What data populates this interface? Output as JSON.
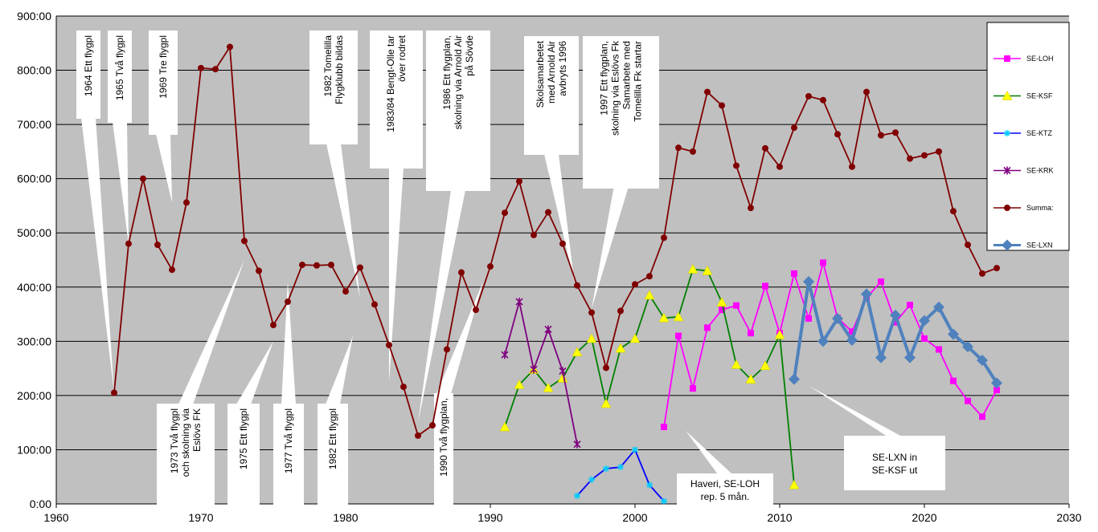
{
  "chart_data": {
    "type": "line",
    "title": "",
    "xlabel": "",
    "ylabel": "",
    "xlim": [
      1960,
      2030
    ],
    "ylim": [
      0,
      900
    ],
    "grid": "horizontal",
    "legend_position": "right",
    "x_ticks": [
      "1960",
      "1970",
      "1980",
      "1990",
      "2000",
      "2010",
      "2020",
      "2030"
    ],
    "y_ticks": [
      "0:00",
      "100:00",
      "200:00",
      "300:00",
      "400:00",
      "500:00",
      "600:00",
      "700:00",
      "800:00",
      "900:00"
    ],
    "series": [
      {
        "name": "SE-LOH",
        "color": "#ff00ff",
        "marker": "square",
        "x": [
          2002,
          2003,
          2004,
          2005,
          2006,
          2007,
          2008,
          2009,
          2010,
          2011,
          2012,
          2013,
          2014,
          2015,
          2016,
          2017,
          2018,
          2019,
          2020,
          2021,
          2022,
          2023,
          2024,
          2025
        ],
        "y": [
          142,
          310,
          213,
          325,
          358,
          366,
          315,
          402,
          315,
          425,
          342,
          445,
          343,
          318,
          380,
          410,
          335,
          367,
          305,
          285,
          227,
          190,
          161,
          210
        ]
      },
      {
        "name": "SE-KSF",
        "color": "#008000",
        "marker": "triangle",
        "x": [
          1991,
          1992,
          1993,
          1994,
          1995,
          1996,
          1997,
          1998,
          1999,
          2000,
          2001,
          2002,
          2003,
          2004,
          2005,
          2006,
          2007,
          2008,
          2009,
          2010,
          2011
        ],
        "y": [
          142,
          220,
          248,
          214,
          232,
          280,
          305,
          185,
          287,
          305,
          385,
          343,
          345,
          433,
          430,
          372,
          257,
          230,
          255,
          312,
          35
        ]
      },
      {
        "name": "SE-KTZ",
        "color": "#0000ff",
        "marker": "star",
        "x": [
          1996,
          1997,
          1998,
          1999,
          2000,
          2001,
          2002
        ],
        "y": [
          15,
          45,
          65,
          68,
          100,
          35,
          5
        ]
      },
      {
        "name": "SE-KRK",
        "color": "#7f007f",
        "marker": "x",
        "x": [
          1991,
          1992,
          1993,
          1994,
          1995,
          1996
        ],
        "y": [
          275,
          373,
          248,
          322,
          245,
          110
        ]
      },
      {
        "name": "Summa:",
        "color": "#800000",
        "marker": "circle",
        "x": [
          1964,
          1965,
          1966,
          1967,
          1968,
          1969,
          1970,
          1971,
          1972,
          1973,
          1974,
          1975,
          1976,
          1977,
          1978,
          1979,
          1980,
          1981,
          1982,
          1983,
          1984,
          1985,
          1986,
          1987,
          1988,
          1989,
          1990,
          1991,
          1992,
          1993,
          1994,
          1995,
          1996,
          1997,
          1998,
          1999,
          2000,
          2001,
          2002,
          2003,
          2004,
          2005,
          2006,
          2007,
          2008,
          2009,
          2010,
          2011,
          2012,
          2013,
          2014,
          2015,
          2016,
          2017,
          2018,
          2019,
          2020,
          2021,
          2022,
          2023,
          2024,
          2025
        ],
        "y": [
          205,
          480,
          600,
          478,
          432,
          556,
          804,
          802,
          843,
          485,
          430,
          330,
          373,
          441,
          440,
          441,
          392,
          436,
          368,
          293,
          216,
          126,
          145,
          285,
          427,
          358,
          438,
          537,
          595,
          496,
          538,
          480,
          403,
          353,
          251,
          356,
          405,
          420,
          491,
          657,
          650,
          760,
          735,
          624,
          546,
          656,
          622,
          694,
          752,
          745,
          682,
          622,
          760,
          680,
          685,
          637,
          643,
          650,
          540,
          478,
          425,
          435
        ]
      },
      {
        "name": "SE-LXN",
        "color": "#4f81bd",
        "marker": "diamond",
        "x": [
          2011,
          2012,
          2013,
          2014,
          2015,
          2016,
          2017,
          2018,
          2019,
          2020,
          2021,
          2022,
          2023,
          2024,
          2025
        ],
        "y": [
          230,
          410,
          300,
          342,
          302,
          387,
          270,
          348,
          270,
          338,
          363,
          313,
          290,
          265,
          223
        ]
      }
    ],
    "annotations": [
      {
        "lines": [
          "1964 Ett flygpl"
        ],
        "rotated": true,
        "target": [
          1964,
          205
        ]
      },
      {
        "lines": [
          "1965 Två flygpl"
        ],
        "rotated": true,
        "target": [
          1965,
          480
        ]
      },
      {
        "lines": [
          "1969 Tre flygpl"
        ],
        "rotated": true,
        "target": [
          1968,
          556
        ]
      },
      {
        "lines": [
          "1982 Tomelilla",
          "Flygklubb bildas"
        ],
        "rotated": true,
        "target": [
          1981,
          380
        ]
      },
      {
        "lines": [
          "1983/84 Bengt-Olle tar",
          "över rodret"
        ],
        "rotated": true,
        "target": [
          1983,
          225
        ]
      },
      {
        "lines": [
          "1986 Ett flygplan,",
          "skolning via Arnold Air",
          "på Sövde"
        ],
        "rotated": true,
        "target": [
          1985,
          150
        ]
      },
      {
        "lines": [
          "Skolsamarbetet",
          "med Arnold Air",
          "avbryts 1996"
        ],
        "rotated": true,
        "target": [
          1995.8,
          410
        ]
      },
      {
        "lines": [
          "1997 Ett flygplan,",
          "skolning via Eslövs Fk",
          "Samarbete med",
          "Tomelilla Fk startar"
        ],
        "rotated": true,
        "target": [
          1997,
          360
        ]
      },
      {
        "lines": [
          "1973 Två flygpl",
          "och skolning via",
          "Eslövs FK"
        ],
        "rotated": true,
        "target": [
          1973,
          450
        ]
      },
      {
        "lines": [
          "1975 Ett flygpl"
        ],
        "rotated": true,
        "target": [
          1975,
          300
        ]
      },
      {
        "lines": [
          "1977 Två flygpl"
        ],
        "rotated": true,
        "target": [
          1976,
          410
        ]
      },
      {
        "lines": [
          "1982 Ett flygpl"
        ],
        "rotated": true,
        "target": [
          1980.5,
          310
        ]
      },
      {
        "lines": [
          "1990 Två flygplan,"
        ],
        "rotated": true,
        "target": [
          1989.5,
          410
        ]
      },
      {
        "lines": [
          "Haveri, SE-LOH",
          "rep. 5 mån."
        ],
        "rotated": false,
        "target": [
          2003.5,
          135
        ]
      },
      {
        "lines": [
          "SE-LXN in",
          "SE-KSF ut"
        ],
        "rotated": false,
        "target": [
          2012,
          218
        ]
      }
    ]
  }
}
